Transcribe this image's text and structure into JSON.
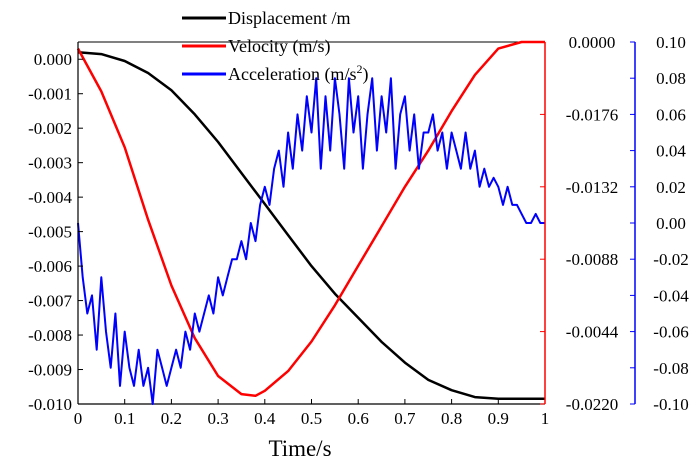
{
  "chart_data": {
    "type": "line",
    "title": "",
    "xlabel": "Time/s",
    "xlim": [
      0,
      1
    ],
    "x_ticks": [
      "0",
      "0.1",
      "0.2",
      "0.3",
      "0.4",
      "0.5",
      "0.6",
      "0.7",
      "0.8",
      "0.9",
      "1"
    ],
    "legend_placement": "top-center",
    "grid": false,
    "axes": [
      {
        "id": "displacement",
        "side": "left",
        "color": "#000000",
        "ylim": [
          -0.01,
          0.0005
        ],
        "ticks": [
          "0.000",
          "-0.001",
          "-0.002",
          "-0.003",
          "-0.004",
          "-0.005",
          "-0.006",
          "-0.007",
          "-0.008",
          "-0.009",
          "-0.010"
        ],
        "tick_values": [
          0,
          -0.001,
          -0.002,
          -0.003,
          -0.004,
          -0.005,
          -0.006,
          -0.007,
          -0.008,
          -0.009,
          -0.01
        ]
      },
      {
        "id": "velocity",
        "side": "right-inner",
        "color": "#ff0000",
        "ylim": [
          -0.022,
          0.0
        ],
        "ticks": [
          "0.0000",
          "-0.0176",
          "-0.0132",
          "-0.0088",
          "-0.0044",
          "-0.0220"
        ],
        "tick_values": [
          0,
          -0.0044,
          -0.0088,
          -0.0132,
          -0.0176,
          -0.022
        ]
      },
      {
        "id": "acceleration",
        "side": "right-outer",
        "color": "#0000ff",
        "ylim": [
          -0.1,
          0.1
        ],
        "ticks": [
          "0.10",
          "0.08",
          "0.06",
          "0.04",
          "0.02",
          "0.00",
          "-0.02",
          "-0.04",
          "-0.06",
          "-0.08",
          "-0.10"
        ],
        "tick_values": [
          0.1,
          0.08,
          0.06,
          0.04,
          0.02,
          0.0,
          -0.02,
          -0.04,
          -0.06,
          -0.08,
          -0.1
        ]
      }
    ],
    "series": [
      {
        "name": "Displacement /m",
        "axis": "displacement",
        "color": "#000000",
        "x": [
          0,
          0.05,
          0.1,
          0.15,
          0.2,
          0.25,
          0.3,
          0.35,
          0.4,
          0.45,
          0.5,
          0.55,
          0.6,
          0.65,
          0.7,
          0.75,
          0.8,
          0.85,
          0.9,
          0.95,
          1.0
        ],
        "y": [
          0.0002,
          0.00015,
          -5e-05,
          -0.0004,
          -0.0009,
          -0.0016,
          -0.0024,
          -0.0033,
          -0.0042,
          -0.0051,
          -0.006,
          -0.0068,
          -0.0075,
          -0.0082,
          -0.0088,
          -0.0093,
          -0.0096,
          -0.0098,
          -0.00985,
          -0.00985,
          -0.00985
        ]
      },
      {
        "name": "Velocity (m/s)",
        "axis": "velocity",
        "color": "#ff0000",
        "x": [
          0,
          0.05,
          0.1,
          0.15,
          0.2,
          0.25,
          0.3,
          0.35,
          0.38,
          0.4,
          0.45,
          0.5,
          0.55,
          0.6,
          0.65,
          0.7,
          0.75,
          0.8,
          0.85,
          0.9,
          0.95,
          1.0
        ],
        "y": [
          -0.0004,
          -0.003,
          -0.0064,
          -0.0108,
          -0.0148,
          -0.018,
          -0.0203,
          -0.0214,
          -0.0215,
          -0.0212,
          -0.02,
          -0.0182,
          -0.016,
          -0.0136,
          -0.0112,
          -0.0088,
          -0.0066,
          -0.0042,
          -0.002,
          -0.0004,
          0.0,
          0.0
        ]
      },
      {
        "name": "Acceleration (m/s²)",
        "label_base": "Acceleration (m/s",
        "label_sup": "2",
        "label_tail": ")",
        "axis": "acceleration",
        "color": "#0000ff",
        "x": [
          0,
          0.01,
          0.02,
          0.03,
          0.04,
          0.05,
          0.06,
          0.07,
          0.08,
          0.09,
          0.1,
          0.11,
          0.12,
          0.13,
          0.14,
          0.15,
          0.16,
          0.17,
          0.18,
          0.19,
          0.2,
          0.21,
          0.22,
          0.23,
          0.24,
          0.25,
          0.26,
          0.27,
          0.28,
          0.29,
          0.3,
          0.31,
          0.32,
          0.33,
          0.34,
          0.35,
          0.36,
          0.37,
          0.38,
          0.39,
          0.4,
          0.41,
          0.42,
          0.43,
          0.44,
          0.45,
          0.46,
          0.47,
          0.48,
          0.49,
          0.5,
          0.51,
          0.52,
          0.53,
          0.54,
          0.55,
          0.56,
          0.57,
          0.58,
          0.59,
          0.6,
          0.61,
          0.62,
          0.63,
          0.64,
          0.65,
          0.66,
          0.67,
          0.68,
          0.69,
          0.7,
          0.71,
          0.72,
          0.73,
          0.74,
          0.75,
          0.76,
          0.77,
          0.78,
          0.79,
          0.8,
          0.81,
          0.82,
          0.83,
          0.84,
          0.85,
          0.86,
          0.87,
          0.88,
          0.89,
          0.9,
          0.91,
          0.92,
          0.93,
          0.94,
          0.95,
          0.96,
          0.97,
          0.98,
          0.99,
          1.0
        ],
        "y": [
          0.0,
          -0.03,
          -0.05,
          -0.04,
          -0.07,
          -0.03,
          -0.06,
          -0.08,
          -0.05,
          -0.09,
          -0.06,
          -0.08,
          -0.09,
          -0.07,
          -0.09,
          -0.08,
          -0.1,
          -0.07,
          -0.08,
          -0.09,
          -0.08,
          -0.07,
          -0.08,
          -0.06,
          -0.07,
          -0.05,
          -0.06,
          -0.05,
          -0.04,
          -0.05,
          -0.03,
          -0.04,
          -0.03,
          -0.02,
          -0.02,
          -0.01,
          -0.02,
          0.0,
          -0.01,
          0.01,
          0.02,
          0.01,
          0.03,
          0.04,
          0.02,
          0.05,
          0.03,
          0.06,
          0.04,
          0.07,
          0.05,
          0.08,
          0.03,
          0.07,
          0.04,
          0.08,
          0.06,
          0.03,
          0.08,
          0.05,
          0.07,
          0.03,
          0.06,
          0.08,
          0.04,
          0.07,
          0.05,
          0.08,
          0.03,
          0.06,
          0.07,
          0.04,
          0.06,
          0.03,
          0.05,
          0.05,
          0.06,
          0.04,
          0.05,
          0.03,
          0.05,
          0.04,
          0.03,
          0.05,
          0.03,
          0.04,
          0.02,
          0.03,
          0.02,
          0.025,
          0.02,
          0.01,
          0.02,
          0.01,
          0.01,
          0.005,
          0.0,
          0.0,
          0.005,
          0.0,
          0.0
        ]
      }
    ]
  }
}
